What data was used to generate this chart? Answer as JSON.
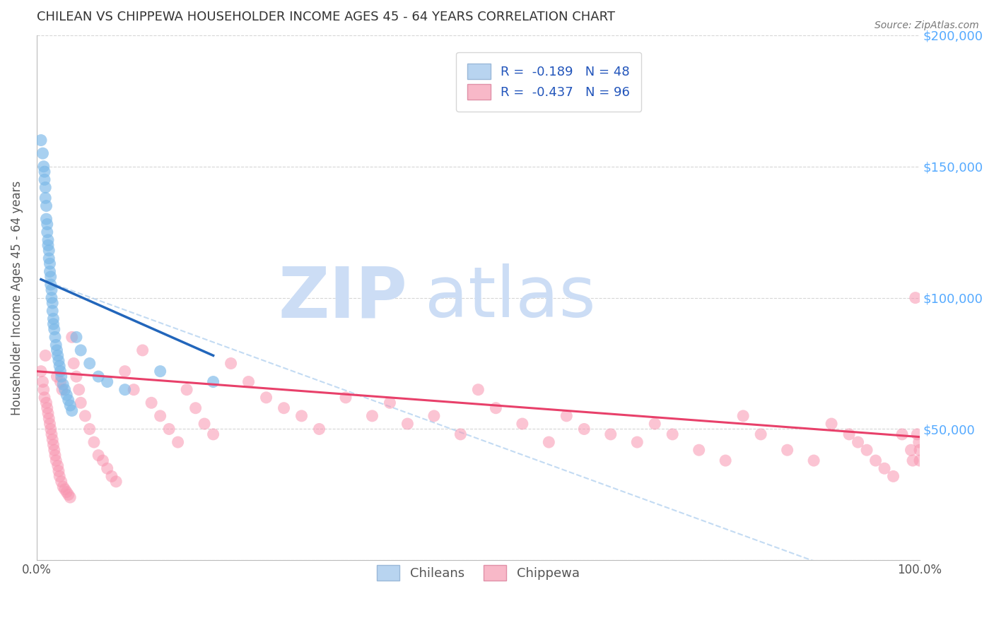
{
  "title": "CHILEAN VS CHIPPEWA HOUSEHOLDER INCOME AGES 45 - 64 YEARS CORRELATION CHART",
  "source": "Source: ZipAtlas.com",
  "ylabel": "Householder Income Ages 45 - 64 years",
  "xlim": [
    0,
    1.0
  ],
  "ylim": [
    0,
    200000
  ],
  "chilean_color": "#7ab8e8",
  "chippewa_color": "#f895b0",
  "chilean_line_color": "#2266bb",
  "chippewa_line_color": "#e8406a",
  "dashed_color": "#aaccee",
  "chilean_R": -0.189,
  "chilean_N": 48,
  "chippewa_R": -0.437,
  "chippewa_N": 96,
  "title_color": "#333333",
  "axis_color": "#777777",
  "right_label_color": "#55aaff",
  "grid_color": "#cccccc",
  "watermark_color": "#ccddf5",
  "chilean_x": [
    0.005,
    0.007,
    0.008,
    0.009,
    0.009,
    0.01,
    0.01,
    0.011,
    0.011,
    0.012,
    0.012,
    0.013,
    0.013,
    0.014,
    0.014,
    0.015,
    0.015,
    0.016,
    0.016,
    0.017,
    0.017,
    0.018,
    0.018,
    0.019,
    0.019,
    0.02,
    0.021,
    0.022,
    0.023,
    0.024,
    0.025,
    0.026,
    0.027,
    0.028,
    0.03,
    0.032,
    0.034,
    0.036,
    0.038,
    0.04,
    0.045,
    0.05,
    0.06,
    0.07,
    0.08,
    0.1,
    0.14,
    0.2
  ],
  "chilean_y": [
    160000,
    155000,
    150000,
    148000,
    145000,
    142000,
    138000,
    135000,
    130000,
    128000,
    125000,
    122000,
    120000,
    118000,
    115000,
    113000,
    110000,
    108000,
    105000,
    103000,
    100000,
    98000,
    95000,
    92000,
    90000,
    88000,
    85000,
    82000,
    80000,
    78000,
    76000,
    74000,
    72000,
    70000,
    67000,
    65000,
    63000,
    61000,
    59000,
    57000,
    85000,
    80000,
    75000,
    70000,
    68000,
    65000,
    72000,
    68000
  ],
  "chippewa_x": [
    0.005,
    0.007,
    0.008,
    0.009,
    0.01,
    0.011,
    0.012,
    0.013,
    0.014,
    0.015,
    0.016,
    0.017,
    0.018,
    0.019,
    0.02,
    0.021,
    0.022,
    0.023,
    0.024,
    0.025,
    0.026,
    0.027,
    0.028,
    0.029,
    0.03,
    0.032,
    0.034,
    0.036,
    0.038,
    0.04,
    0.042,
    0.045,
    0.048,
    0.05,
    0.055,
    0.06,
    0.065,
    0.07,
    0.075,
    0.08,
    0.085,
    0.09,
    0.1,
    0.11,
    0.12,
    0.13,
    0.14,
    0.15,
    0.16,
    0.17,
    0.18,
    0.19,
    0.2,
    0.22,
    0.24,
    0.26,
    0.28,
    0.3,
    0.32,
    0.35,
    0.38,
    0.4,
    0.42,
    0.45,
    0.48,
    0.5,
    0.52,
    0.55,
    0.58,
    0.6,
    0.62,
    0.65,
    0.68,
    0.7,
    0.72,
    0.75,
    0.78,
    0.8,
    0.82,
    0.85,
    0.88,
    0.9,
    0.92,
    0.93,
    0.94,
    0.95,
    0.96,
    0.97,
    0.98,
    0.99,
    0.992,
    0.995,
    0.997,
    0.999,
    1.0,
    1.0
  ],
  "chippewa_y": [
    72000,
    68000,
    65000,
    62000,
    78000,
    60000,
    58000,
    56000,
    54000,
    52000,
    50000,
    48000,
    46000,
    44000,
    42000,
    40000,
    38000,
    70000,
    36000,
    34000,
    32000,
    68000,
    30000,
    65000,
    28000,
    27000,
    26000,
    25000,
    24000,
    85000,
    75000,
    70000,
    65000,
    60000,
    55000,
    50000,
    45000,
    40000,
    38000,
    35000,
    32000,
    30000,
    72000,
    65000,
    80000,
    60000,
    55000,
    50000,
    45000,
    65000,
    58000,
    52000,
    48000,
    75000,
    68000,
    62000,
    58000,
    55000,
    50000,
    62000,
    55000,
    60000,
    52000,
    55000,
    48000,
    65000,
    58000,
    52000,
    45000,
    55000,
    50000,
    48000,
    45000,
    52000,
    48000,
    42000,
    38000,
    55000,
    48000,
    42000,
    38000,
    52000,
    48000,
    45000,
    42000,
    38000,
    35000,
    32000,
    48000,
    42000,
    38000,
    100000,
    48000,
    45000,
    42000,
    38000
  ],
  "chilean_line_x": [
    0.005,
    0.2
  ],
  "chilean_line_y": [
    107000,
    78000
  ],
  "chippewa_line_x": [
    0.0,
    1.0
  ],
  "chippewa_line_y": [
    72000,
    47000
  ],
  "dashed_line_x": [
    0.005,
    1.0
  ],
  "dashed_line_y": [
    107000,
    -15000
  ]
}
